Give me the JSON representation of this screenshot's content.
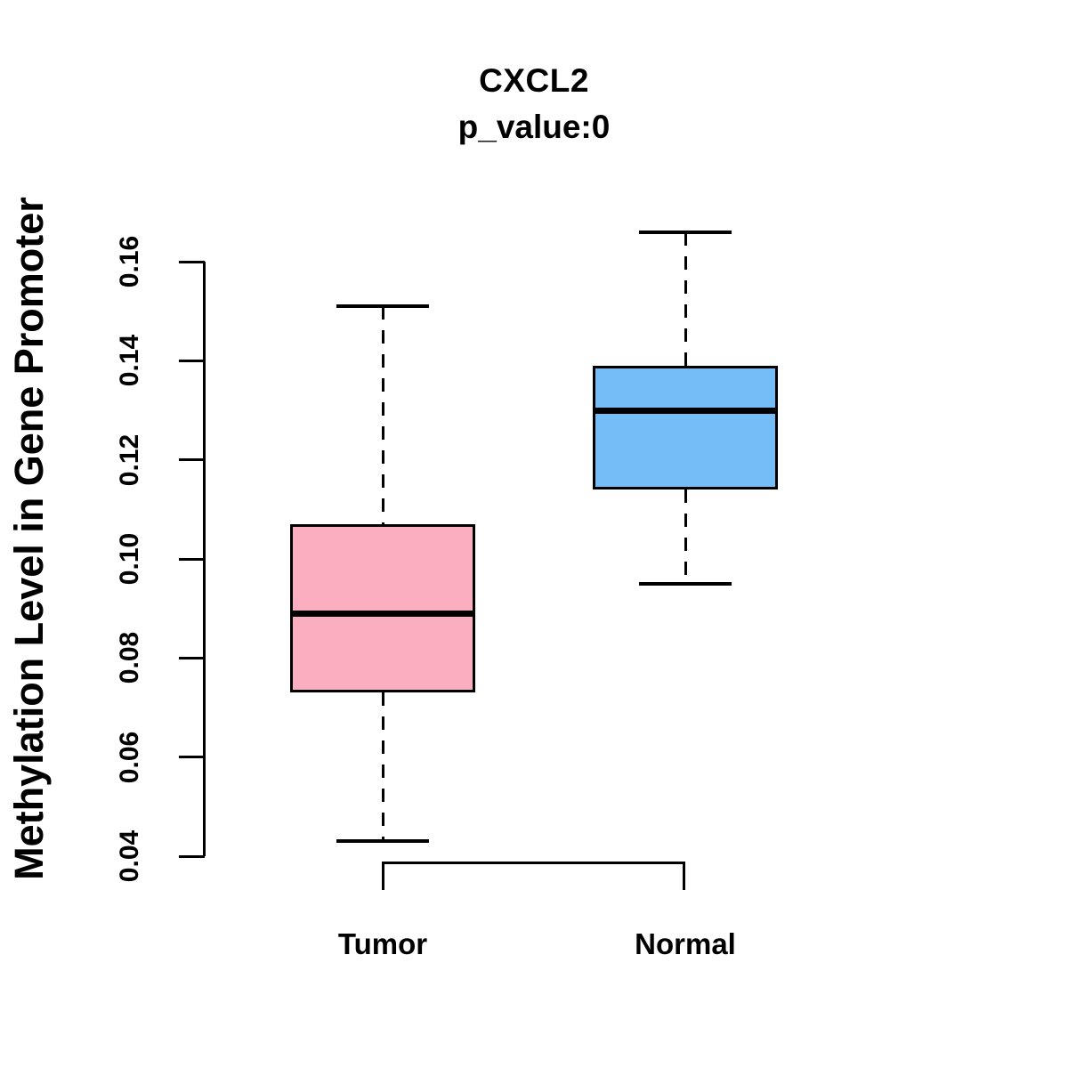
{
  "chart_data": {
    "type": "boxplot",
    "title": "CXCL2",
    "subtitle": "p_value:0",
    "ylabel": "Methylation Level in Gene Promoter",
    "xlabel": "",
    "categories": [
      "Tumor",
      "Normal"
    ],
    "yticks": [
      "0.04",
      "0.06",
      "0.08",
      "0.10",
      "0.12",
      "0.14",
      "0.16"
    ],
    "ylim": [
      0.038,
      0.168
    ],
    "grid": false,
    "legend": null,
    "axis_color": "#000000",
    "text_color": "#000000",
    "groups": [
      {
        "label": "Tumor",
        "color": "#FCAEC1",
        "whisker_low": 0.043,
        "q1": 0.073,
        "median": 0.089,
        "q3": 0.107,
        "whisker_high": 0.151
      },
      {
        "label": "Normal",
        "color": "#74BDF7",
        "whisker_low": 0.095,
        "q1": 0.114,
        "median": 0.13,
        "q3": 0.139,
        "whisker_high": 0.166
      }
    ]
  }
}
